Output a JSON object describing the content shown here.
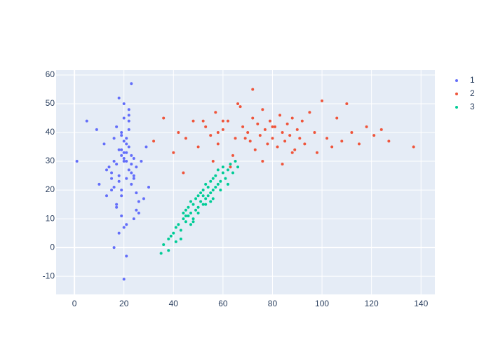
{
  "chart_data": {
    "type": "scatter",
    "xlim": [
      -7.4,
      145.6
    ],
    "ylim": [
      -16.3,
      61.7
    ],
    "xticks": [
      0,
      20,
      40,
      60,
      80,
      100,
      120,
      140
    ],
    "yticks": [
      -10,
      0,
      10,
      20,
      30,
      40,
      50,
      60
    ],
    "grid": true,
    "legend": "outside-right",
    "series": [
      {
        "name": "1",
        "color": "#636efa",
        "x": [
          20,
          18,
          22,
          15,
          25,
          19,
          21,
          17,
          23,
          16,
          24,
          20,
          13,
          27,
          22,
          18,
          19,
          21,
          12,
          26,
          20,
          23,
          17,
          15,
          28,
          19,
          21,
          24,
          16,
          22,
          20,
          18,
          14,
          25,
          21,
          19,
          23,
          17,
          20,
          22,
          10,
          29,
          18,
          21,
          16,
          24,
          20,
          19,
          22,
          13,
          26,
          21,
          17,
          20,
          23,
          15,
          19,
          22,
          18,
          25,
          9,
          1,
          5,
          20,
          24,
          23,
          19,
          16,
          30,
          21
        ],
        "values": [
          30,
          25,
          35,
          20,
          28,
          40,
          33,
          15,
          22,
          38,
          10,
          45,
          18,
          30,
          27,
          5,
          32,
          24,
          36,
          12,
          50,
          29,
          42,
          26,
          17,
          34,
          8,
          31,
          21,
          44,
          37,
          23,
          28,
          19,
          -3,
          39,
          26,
          14,
          31,
          46,
          22,
          35,
          52,
          30,
          0,
          25,
          33,
          11,
          41,
          27,
          16,
          36,
          29,
          7,
          57,
          24,
          20,
          48,
          34,
          13,
          41,
          30,
          44,
          -11,
          24,
          32,
          18,
          30,
          21,
          38
        ]
      },
      {
        "name": "2",
        "color": "#EF553B",
        "x": [
          32,
          36,
          40,
          42,
          45,
          48,
          50,
          53,
          55,
          57,
          58,
          60,
          62,
          64,
          65,
          66,
          68,
          70,
          71,
          72,
          73,
          74,
          75,
          76,
          77,
          78,
          79,
          80,
          81,
          82,
          83,
          84,
          85,
          86,
          87,
          88,
          89,
          90,
          91,
          92,
          93,
          95,
          97,
          98,
          100,
          102,
          104,
          106,
          108,
          110,
          112,
          115,
          118,
          121,
          124,
          127,
          137,
          56,
          60,
          63,
          67,
          72,
          76,
          80,
          84,
          88,
          44,
          52,
          58,
          69
        ],
        "values": [
          37,
          45,
          33,
          40,
          38,
          44,
          35,
          42,
          39,
          47,
          36,
          41,
          44,
          32,
          38,
          50,
          42,
          40,
          37,
          45,
          34,
          43,
          39,
          48,
          41,
          36,
          44,
          38,
          42,
          35,
          46,
          40,
          37,
          43,
          39,
          45,
          34,
          41,
          38,
          44,
          36,
          47,
          40,
          33,
          51,
          38,
          35,
          45,
          37,
          50,
          40,
          36,
          42,
          39,
          41,
          37,
          35,
          30,
          44,
          28,
          49,
          55,
          30,
          42,
          29,
          33,
          26,
          44,
          40,
          38
        ]
      },
      {
        "name": "3",
        "color": "#00cc96",
        "x": [
          35,
          36,
          38,
          39,
          40,
          41,
          42,
          43,
          44,
          44,
          45,
          45,
          46,
          46,
          47,
          47,
          48,
          48,
          49,
          49,
          50,
          50,
          51,
          51,
          52,
          52,
          53,
          53,
          54,
          54,
          55,
          55,
          56,
          56,
          57,
          57,
          58,
          58,
          59,
          60,
          60,
          61,
          62,
          63,
          64,
          65,
          66,
          41,
          43,
          47,
          50,
          53,
          56,
          59,
          62,
          38,
          45,
          48,
          52,
          55
        ],
        "values": [
          -2,
          1,
          3,
          4,
          5,
          7,
          8,
          6,
          10,
          12,
          9,
          13,
          11,
          14,
          12,
          16,
          15,
          10,
          17,
          13,
          14,
          18,
          16,
          19,
          15,
          20,
          17,
          22,
          18,
          21,
          19,
          23,
          20,
          24,
          21,
          25,
          22,
          27,
          23,
          26,
          28,
          24,
          27,
          29,
          26,
          30,
          28,
          2,
          3,
          8,
          12,
          15,
          17,
          20,
          22,
          -1,
          11,
          9,
          18,
          16
        ]
      }
    ]
  }
}
